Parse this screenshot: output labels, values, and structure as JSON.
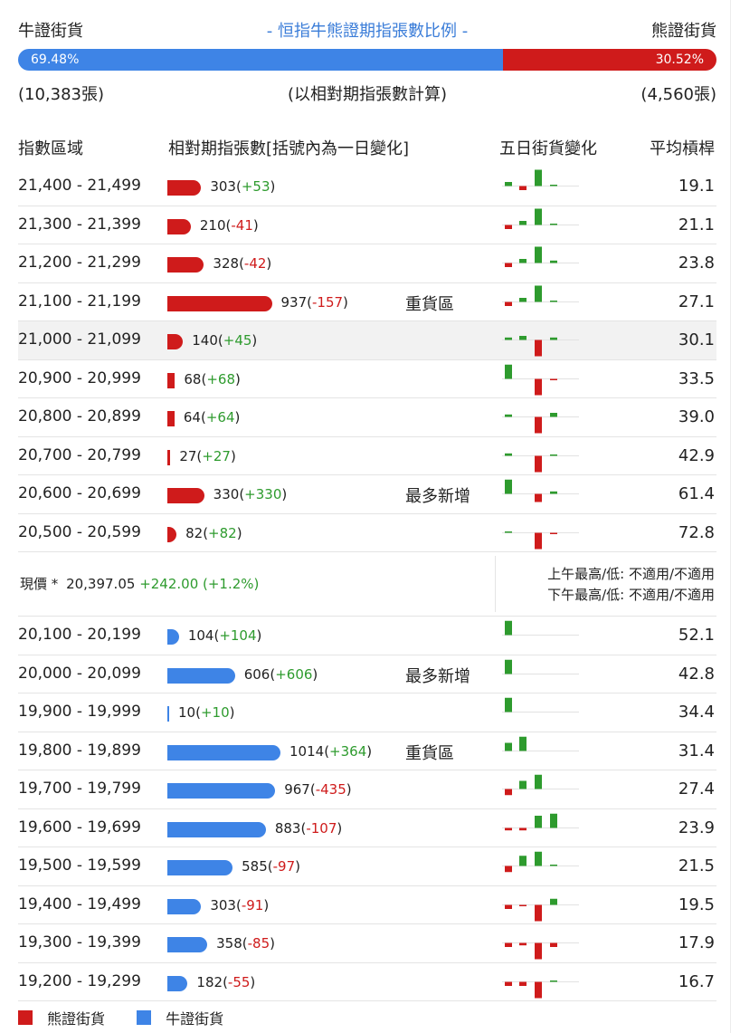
{
  "header": {
    "bull_label": "牛證街貨",
    "title": "- 恒指牛熊證期指張數比例 -",
    "bear_label": "熊證街貨"
  },
  "ratio": {
    "bull_pct": "69.48%",
    "bear_pct": "30.52%",
    "bull_fraction": 0.6948
  },
  "counts": {
    "bull": "(10,383張)",
    "note": "(以相對期指張數計算)",
    "bear": "(4,560張)"
  },
  "columns": {
    "zone": "指數區域",
    "contracts": "相對期指張數[括號內為一日變化]",
    "five_day": "五日街貨變化",
    "leverage": "平均槓桿"
  },
  "colors": {
    "bear": "#cf1b1b",
    "bull": "#3e84e6",
    "up": "#2e9b2e",
    "down": "#cf1b1b"
  },
  "bear_rows": [
    {
      "zone": "21,400 - 21,499",
      "n": 303,
      "num": "303",
      "chg": "+53",
      "lev": "19.1",
      "tag": "",
      "spark": [
        [
          1,
          1
        ],
        [
          -1,
          1
        ],
        [
          1,
          4
        ],
        [
          1,
          0.2
        ]
      ]
    },
    {
      "zone": "21,300 - 21,399",
      "n": 210,
      "num": "210",
      "chg": "-41",
      "lev": "21.1",
      "tag": "",
      "spark": [
        [
          -1,
          1
        ],
        [
          1,
          1
        ],
        [
          1,
          4
        ],
        [
          1,
          0.2
        ]
      ]
    },
    {
      "zone": "21,200 - 21,299",
      "n": 328,
      "num": "328",
      "chg": "-42",
      "lev": "23.8",
      "tag": "",
      "spark": [
        [
          -1,
          1
        ],
        [
          1,
          1
        ],
        [
          1,
          4
        ],
        [
          1,
          0.6
        ]
      ]
    },
    {
      "zone": "21,100 - 21,199",
      "n": 937,
      "num": "937",
      "chg": "-157",
      "lev": "27.1",
      "tag": "重貨區",
      "spark": [
        [
          -1,
          1
        ],
        [
          1,
          1
        ],
        [
          1,
          4
        ],
        [
          1,
          0.2
        ]
      ]
    },
    {
      "zone": "21,000 - 21,099",
      "n": 140,
      "num": "140",
      "chg": "+45",
      "lev": "30.1",
      "tag": "",
      "spark": [
        [
          1,
          0.6
        ],
        [
          1,
          1
        ],
        [
          -1,
          4
        ],
        [
          1,
          0.6
        ]
      ],
      "hl": true
    },
    {
      "zone": "20,900 - 20,999",
      "n": 68,
      "num": "68",
      "chg": "+68",
      "lev": "33.5",
      "tag": "",
      "spark": [
        [
          1,
          3.5
        ],
        [
          0,
          0
        ],
        [
          -1,
          4
        ],
        [
          -1,
          0.2
        ]
      ]
    },
    {
      "zone": "20,800 - 20,899",
      "n": 64,
      "num": "64",
      "chg": "+64",
      "lev": "39.0",
      "tag": "",
      "spark": [
        [
          1,
          0.6
        ],
        [
          0,
          0
        ],
        [
          -1,
          4
        ],
        [
          1,
          1
        ]
      ]
    },
    {
      "zone": "20,700 - 20,799",
      "n": 27,
      "num": "27",
      "chg": "+27",
      "lev": "42.9",
      "tag": "",
      "spark": [
        [
          1,
          0.6
        ],
        [
          0,
          0
        ],
        [
          -1,
          4
        ],
        [
          1,
          0.2
        ]
      ]
    },
    {
      "zone": "20,600 - 20,699",
      "n": 330,
      "num": "330",
      "chg": "+330",
      "lev": "61.4",
      "tag": "最多新增",
      "spark": [
        [
          1,
          3.5
        ],
        [
          0,
          0
        ],
        [
          -1,
          2
        ],
        [
          1,
          0.6
        ]
      ]
    },
    {
      "zone": "20,500 - 20,599",
      "n": 82,
      "num": "82",
      "chg": "+82",
      "lev": "72.8",
      "tag": "",
      "spark": [
        [
          1,
          0.2
        ],
        [
          0,
          0
        ],
        [
          -1,
          4
        ],
        [
          -1,
          0.2
        ]
      ]
    }
  ],
  "price": {
    "label": "現價 *",
    "value": "20,397.05",
    "change": "+242.00 (+1.2%)",
    "am": "上午最高/低: 不適用/不適用",
    "pm": "下午最高/低: 不適用/不適用"
  },
  "bull_rows": [
    {
      "zone": "20,100 - 20,199",
      "n": 104,
      "num": "104",
      "chg": "+104",
      "lev": "52.1",
      "tag": "",
      "spark": [
        [
          1,
          3.5
        ],
        [
          0,
          0
        ],
        [
          0,
          0
        ],
        [
          0,
          0
        ]
      ]
    },
    {
      "zone": "20,000 - 20,099",
      "n": 606,
      "num": "606",
      "chg": "+606",
      "lev": "42.8",
      "tag": "最多新增",
      "spark": [
        [
          1,
          3.5
        ],
        [
          0,
          0
        ],
        [
          0,
          0
        ],
        [
          0,
          0
        ]
      ]
    },
    {
      "zone": "19,900 - 19,999",
      "n": 10,
      "num": "10",
      "chg": "+10",
      "lev": "34.4",
      "tag": "",
      "spark": [
        [
          1,
          3.5
        ],
        [
          0,
          0
        ],
        [
          0,
          0
        ],
        [
          0,
          0
        ]
      ]
    },
    {
      "zone": "19,800 - 19,899",
      "n": 1014,
      "num": "1014",
      "chg": "+364",
      "lev": "31.4",
      "tag": "重貨區",
      "spark": [
        [
          1,
          2
        ],
        [
          1,
          3.5
        ],
        [
          0,
          0
        ],
        [
          0,
          0
        ]
      ]
    },
    {
      "zone": "19,700 - 19,799",
      "n": 967,
      "num": "967",
      "chg": "-435",
      "lev": "27.4",
      "tag": "",
      "spark": [
        [
          -1,
          1.5
        ],
        [
          1,
          2
        ],
        [
          1,
          3.5
        ],
        [
          0,
          0
        ]
      ]
    },
    {
      "zone": "19,600 - 19,699",
      "n": 883,
      "num": "883",
      "chg": "-107",
      "lev": "23.9",
      "tag": "",
      "spark": [
        [
          -1,
          0.6
        ],
        [
          -1,
          0.6
        ],
        [
          1,
          3
        ],
        [
          1,
          3.5
        ]
      ]
    },
    {
      "zone": "19,500 - 19,599",
      "n": 585,
      "num": "585",
      "chg": "-97",
      "lev": "21.5",
      "tag": "",
      "spark": [
        [
          -1,
          1.5
        ],
        [
          1,
          2.5
        ],
        [
          1,
          3.5
        ],
        [
          1,
          0.2
        ]
      ]
    },
    {
      "zone": "19,400 - 19,499",
      "n": 303,
      "num": "303",
      "chg": "-91",
      "lev": "19.5",
      "tag": "",
      "spark": [
        [
          -1,
          1
        ],
        [
          -1,
          0.2
        ],
        [
          -1,
          4
        ],
        [
          1,
          1.5
        ]
      ]
    },
    {
      "zone": "19,300 - 19,399",
      "n": 358,
      "num": "358",
      "chg": "-85",
      "lev": "17.9",
      "tag": "",
      "spark": [
        [
          -1,
          1
        ],
        [
          -1,
          0.6
        ],
        [
          -1,
          4
        ],
        [
          -1,
          1
        ]
      ]
    },
    {
      "zone": "19,200 - 19,299",
      "n": 182,
      "num": "182",
      "chg": "-55",
      "lev": "16.7",
      "tag": "",
      "spark": [
        [
          -1,
          1
        ],
        [
          -1,
          1
        ],
        [
          -1,
          4
        ],
        [
          1,
          0.2
        ]
      ]
    }
  ],
  "legend": {
    "bear": "熊證街貨",
    "bull": "牛證街貨"
  }
}
